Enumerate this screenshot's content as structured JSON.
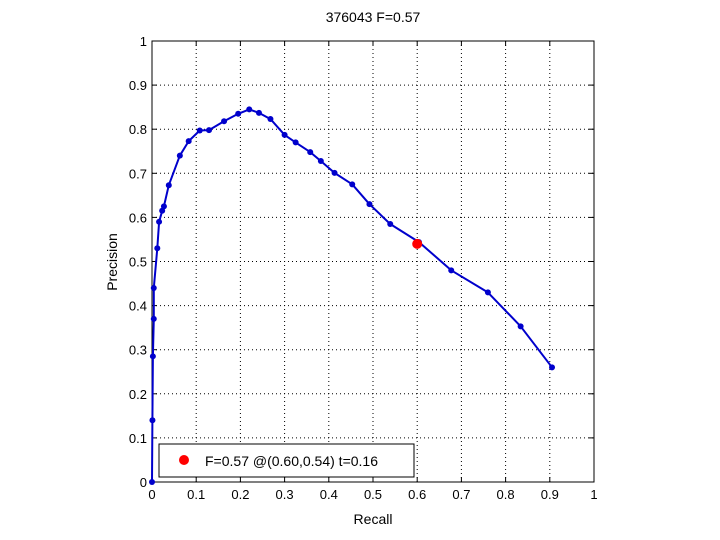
{
  "colors": {
    "series": "#0000cc",
    "best_point": "#ff0000",
    "grid": "#000000",
    "axes": "#000000",
    "background": "#ffffff"
  },
  "chart_data": {
    "type": "line",
    "title": "376043 F=0.57",
    "xlabel": "Recall",
    "ylabel": "Precision",
    "xlim": [
      0,
      1
    ],
    "ylim": [
      0,
      1
    ],
    "grid": true,
    "x_ticks": [
      "0",
      "0.1",
      "0.2",
      "0.3",
      "0.4",
      "0.5",
      "0.6",
      "0.7",
      "0.8",
      "0.9",
      "1"
    ],
    "y_ticks": [
      "0",
      "0.1",
      "0.2",
      "0.3",
      "0.4",
      "0.5",
      "0.6",
      "0.7",
      "0.8",
      "0.9",
      "1"
    ],
    "legend_location": "bottom-left",
    "series": [
      {
        "points": [
          [
            0.0,
            0.0
          ],
          [
            0.001,
            0.14
          ],
          [
            0.002,
            0.285
          ],
          [
            0.004,
            0.37
          ],
          [
            0.004,
            0.44
          ],
          [
            0.012,
            0.53
          ],
          [
            0.016,
            0.59
          ],
          [
            0.023,
            0.615
          ],
          [
            0.027,
            0.625
          ],
          [
            0.038,
            0.673
          ],
          [
            0.063,
            0.74
          ],
          [
            0.083,
            0.773
          ],
          [
            0.108,
            0.797
          ],
          [
            0.129,
            0.798
          ],
          [
            0.163,
            0.818
          ],
          [
            0.195,
            0.835
          ],
          [
            0.22,
            0.845
          ],
          [
            0.242,
            0.837
          ],
          [
            0.268,
            0.823
          ],
          [
            0.3,
            0.787
          ],
          [
            0.325,
            0.77
          ],
          [
            0.358,
            0.748
          ],
          [
            0.382,
            0.728
          ],
          [
            0.413,
            0.701
          ],
          [
            0.453,
            0.675
          ],
          [
            0.492,
            0.63
          ],
          [
            0.539,
            0.585
          ],
          [
            0.604,
            0.544
          ],
          [
            0.677,
            0.48
          ],
          [
            0.76,
            0.43
          ],
          [
            0.834,
            0.353
          ],
          [
            0.905,
            0.26
          ]
        ]
      }
    ],
    "best_point": {
      "recall": 0.6,
      "precision": 0.54,
      "label": "F=0.57 @(0.60,0.54) t=0.16"
    }
  }
}
